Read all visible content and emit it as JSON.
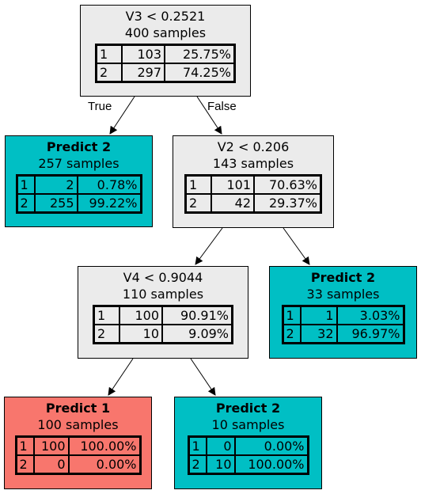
{
  "nodes": {
    "root": {
      "title": "V3 < 0.2521",
      "samples": "400 samples",
      "rows": [
        {
          "cls": "1",
          "count": "103",
          "pct": "25.75%"
        },
        {
          "cls": "2",
          "count": "297",
          "pct": "74.25%"
        }
      ]
    },
    "leaf_a": {
      "title": "Predict 2",
      "samples": "257 samples",
      "rows": [
        {
          "cls": "1",
          "count": "2",
          "pct": "0.78%"
        },
        {
          "cls": "2",
          "count": "255",
          "pct": "99.22%"
        }
      ]
    },
    "split_v2": {
      "title": "V2 < 0.206",
      "samples": "143 samples",
      "rows": [
        {
          "cls": "1",
          "count": "101",
          "pct": "70.63%"
        },
        {
          "cls": "2",
          "count": "42",
          "pct": "29.37%"
        }
      ]
    },
    "split_v4": {
      "title": "V4 < 0.9044",
      "samples": "110 samples",
      "rows": [
        {
          "cls": "1",
          "count": "100",
          "pct": "90.91%"
        },
        {
          "cls": "2",
          "count": "10",
          "pct": "9.09%"
        }
      ]
    },
    "leaf_b": {
      "title": "Predict 2",
      "samples": "33 samples",
      "rows": [
        {
          "cls": "1",
          "count": "1",
          "pct": "3.03%"
        },
        {
          "cls": "2",
          "count": "32",
          "pct": "96.97%"
        }
      ]
    },
    "leaf_c": {
      "title": "Predict 1",
      "samples": "100 samples",
      "rows": [
        {
          "cls": "1",
          "count": "100",
          "pct": "100.00%"
        },
        {
          "cls": "2",
          "count": "0",
          "pct": "0.00%"
        }
      ]
    },
    "leaf_d": {
      "title": "Predict 2",
      "samples": "10 samples",
      "rows": [
        {
          "cls": "1",
          "count": "0",
          "pct": "0.00%"
        },
        {
          "cls": "2",
          "count": "10",
          "pct": "100.00%"
        }
      ]
    }
  },
  "edge_labels": {
    "true_label": "True",
    "false_label": "False"
  },
  "colors": {
    "split_fill": "#ebebeb",
    "class2_fill": "#00bfc4",
    "class1_fill": "#f8766d"
  }
}
